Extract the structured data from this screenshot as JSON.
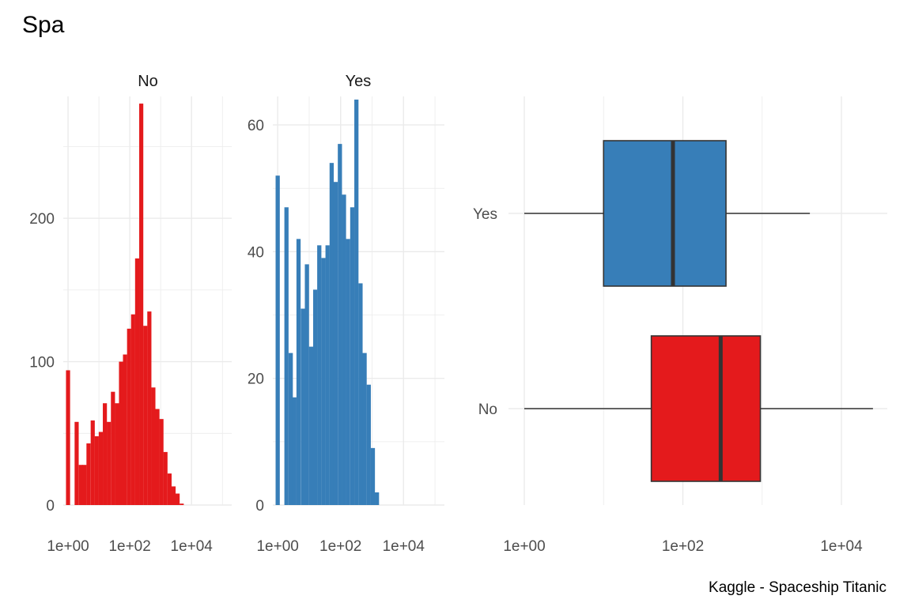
{
  "title": "Spa",
  "caption": "Kaggle - Spaceship Titanic",
  "colors": {
    "No": "#e41a1c",
    "Yes": "#377eb8",
    "grid": "#ebebeb",
    "outline": "#333333"
  },
  "chart_data": [
    {
      "type": "bar",
      "subtype": "histogram",
      "facet": "No",
      "x_scale": "log10",
      "x_ticks": [
        "1e+00",
        "1e+02",
        "1e+04"
      ],
      "x_tick_values": [
        1,
        100,
        10000
      ],
      "y_ticks": [
        "0",
        "100",
        "200"
      ],
      "y_tick_values": [
        0,
        100,
        200
      ],
      "xlim": [
        0.7,
        200000
      ],
      "ylim": [
        0,
        285
      ],
      "bin_width_log10": 0.133,
      "bins": [
        {
          "x": 1,
          "count": 94
        },
        {
          "x": 1.9,
          "count": 58
        },
        {
          "x": 2.6,
          "count": 28
        },
        {
          "x": 3.4,
          "count": 28
        },
        {
          "x": 4.6,
          "count": 43
        },
        {
          "x": 6.3,
          "count": 59
        },
        {
          "x": 8.5,
          "count": 48
        },
        {
          "x": 11.5,
          "count": 51
        },
        {
          "x": 15.6,
          "count": 71
        },
        {
          "x": 21,
          "count": 58
        },
        {
          "x": 28.5,
          "count": 79
        },
        {
          "x": 38.5,
          "count": 71
        },
        {
          "x": 52,
          "count": 100
        },
        {
          "x": 70,
          "count": 105
        },
        {
          "x": 95,
          "count": 123
        },
        {
          "x": 128,
          "count": 133
        },
        {
          "x": 173,
          "count": 172
        },
        {
          "x": 235,
          "count": 280
        },
        {
          "x": 318,
          "count": 125
        },
        {
          "x": 430,
          "count": 135
        },
        {
          "x": 580,
          "count": 82
        },
        {
          "x": 785,
          "count": 67
        },
        {
          "x": 1060,
          "count": 60
        },
        {
          "x": 1430,
          "count": 37
        },
        {
          "x": 1940,
          "count": 22
        },
        {
          "x": 2620,
          "count": 13
        },
        {
          "x": 3540,
          "count": 8
        },
        {
          "x": 4800,
          "count": 1
        }
      ]
    },
    {
      "type": "bar",
      "subtype": "histogram",
      "facet": "Yes",
      "x_scale": "log10",
      "x_ticks": [
        "1e+00",
        "1e+02",
        "1e+04"
      ],
      "x_tick_values": [
        1,
        100,
        10000
      ],
      "y_ticks": [
        "0",
        "20",
        "40",
        "60"
      ],
      "y_tick_values": [
        0,
        20,
        40,
        60
      ],
      "xlim": [
        0.7,
        200000
      ],
      "ylim": [
        0,
        64.5
      ],
      "bin_width_log10": 0.133,
      "bins": [
        {
          "x": 1,
          "count": 52
        },
        {
          "x": 1.9,
          "count": 47
        },
        {
          "x": 2.6,
          "count": 24
        },
        {
          "x": 3.4,
          "count": 17
        },
        {
          "x": 4.6,
          "count": 42
        },
        {
          "x": 6.3,
          "count": 31
        },
        {
          "x": 8.5,
          "count": 38
        },
        {
          "x": 11.5,
          "count": 25
        },
        {
          "x": 15.6,
          "count": 34
        },
        {
          "x": 21,
          "count": 41
        },
        {
          "x": 28.5,
          "count": 39
        },
        {
          "x": 38.5,
          "count": 41
        },
        {
          "x": 52,
          "count": 54
        },
        {
          "x": 70,
          "count": 51
        },
        {
          "x": 95,
          "count": 57
        },
        {
          "x": 128,
          "count": 49
        },
        {
          "x": 173,
          "count": 42
        },
        {
          "x": 235,
          "count": 47
        },
        {
          "x": 318,
          "count": 64
        },
        {
          "x": 430,
          "count": 35
        },
        {
          "x": 580,
          "count": 24
        },
        {
          "x": 785,
          "count": 19
        },
        {
          "x": 1060,
          "count": 9
        },
        {
          "x": 1430,
          "count": 2
        }
      ]
    },
    {
      "type": "box",
      "orientation": "horizontal",
      "x_scale": "log10",
      "x_ticks": [
        "1e+00",
        "1e+02",
        "1e+04"
      ],
      "x_tick_values": [
        1,
        100,
        10000
      ],
      "xlim": [
        1,
        40000
      ],
      "categories": [
        "Yes",
        "No"
      ],
      "boxes": [
        {
          "category": "Yes",
          "whisker_low": 1,
          "q1": 10,
          "median": 75,
          "q3": 350,
          "whisker_high": 4000
        },
        {
          "category": "No",
          "whisker_low": 1,
          "q1": 40,
          "median": 300,
          "q3": 950,
          "whisker_high": 25000
        }
      ]
    }
  ]
}
